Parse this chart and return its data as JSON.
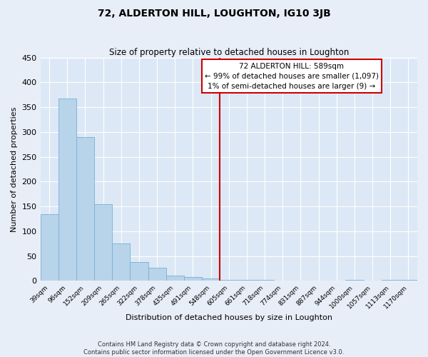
{
  "title": "72, ALDERTON HILL, LOUGHTON, IG10 3JB",
  "subtitle": "Size of property relative to detached houses in Loughton",
  "xlabel": "Distribution of detached houses by size in Loughton",
  "ylabel": "Number of detached properties",
  "bar_color": "#b8d4ea",
  "bar_edge_color": "#7aaed4",
  "bg_color": "#dce8f5",
  "grid_color": "#ffffff",
  "fig_bg_color": "#e8eef8",
  "categories": [
    "39sqm",
    "96sqm",
    "152sqm",
    "209sqm",
    "265sqm",
    "322sqm",
    "378sqm",
    "435sqm",
    "491sqm",
    "548sqm",
    "605sqm",
    "661sqm",
    "718sqm",
    "774sqm",
    "831sqm",
    "887sqm",
    "944sqm",
    "1000sqm",
    "1057sqm",
    "1113sqm",
    "1170sqm"
  ],
  "values": [
    135,
    368,
    290,
    155,
    75,
    38,
    26,
    11,
    8,
    5,
    2,
    2,
    2,
    0,
    0,
    0,
    0,
    2,
    0,
    2,
    2
  ],
  "ylim": [
    0,
    450
  ],
  "yticks": [
    0,
    50,
    100,
    150,
    200,
    250,
    300,
    350,
    400,
    450
  ],
  "vline_index": 10,
  "vline_color": "#cc0000",
  "annotation_title": "72 ALDERTON HILL: 589sqm",
  "annotation_line1": "← 99% of detached houses are smaller (1,097)",
  "annotation_line2": "1% of semi-detached houses are larger (9) →",
  "annotation_border_color": "#cc0000",
  "footnote1": "Contains HM Land Registry data © Crown copyright and database right 2024.",
  "footnote2": "Contains public sector information licensed under the Open Government Licence v3.0."
}
